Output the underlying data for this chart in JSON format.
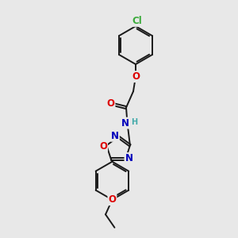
{
  "bg_color": "#e8e8e8",
  "bond_color": "#1a1a1a",
  "bond_width": 1.4,
  "atom_colors": {
    "O": "#dd0000",
    "N": "#0000bb",
    "Cl": "#3aaa3a",
    "H": "#44aaaa",
    "C": "#1a1a1a"
  },
  "font_size_atom": 8.5,
  "font_size_h": 7.0
}
